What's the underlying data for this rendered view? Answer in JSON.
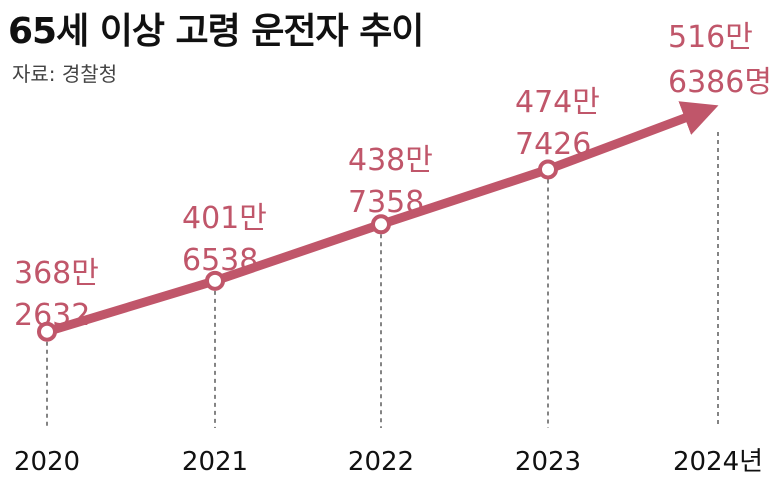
{
  "header": {
    "title": "65세 이상 고령 운전자 추이",
    "source": "자료: 경찰청"
  },
  "colors": {
    "line": "#c0566a",
    "text": "#111111",
    "label": "#c0566a"
  },
  "chart_data": {
    "type": "line",
    "x": [
      "2020",
      "2021",
      "2022",
      "2023",
      "2024년"
    ],
    "values": [
      3682632,
      4016538,
      4387358,
      4747426,
      5166386
    ],
    "labels": [
      [
        "368만",
        "2632"
      ],
      [
        "401만",
        "6538"
      ],
      [
        "438만",
        "7358"
      ],
      [
        "474만",
        "7426"
      ],
      [
        "516만",
        "6386명"
      ]
    ],
    "ylim": [
      3300000,
      5400000
    ],
    "grid": false,
    "legend": "none"
  }
}
